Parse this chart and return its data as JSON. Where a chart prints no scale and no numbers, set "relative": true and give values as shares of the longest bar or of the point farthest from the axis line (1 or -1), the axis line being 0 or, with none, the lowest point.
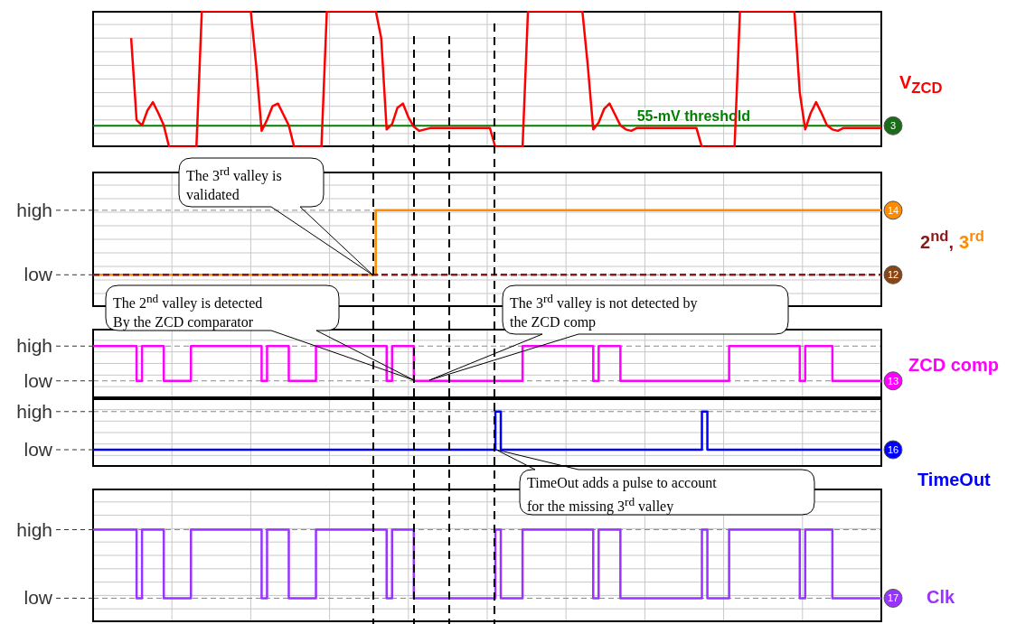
{
  "chart_data": [
    {
      "type": "line",
      "relative": true,
      "grid": true,
      "marker": "none",
      "categories": [
        null,
        null,
        null,
        null,
        null,
        null,
        null,
        null,
        null,
        null,
        null,
        null,
        null,
        null,
        null,
        null,
        null,
        null,
        null,
        null,
        null,
        null,
        null,
        null,
        null,
        null,
        null,
        null,
        null,
        null,
        null,
        null,
        null,
        null,
        null,
        null,
        null,
        null,
        null,
        null,
        null,
        null,
        null,
        null,
        null,
        null,
        null,
        null,
        null,
        null,
        null,
        null,
        null,
        null,
        null,
        null,
        null,
        null,
        null,
        null,
        null,
        null,
        null,
        null,
        null,
        null,
        null,
        null,
        null,
        null,
        null,
        null,
        null,
        null,
        null,
        null,
        null,
        null,
        null,
        null,
        null,
        null,
        null,
        null,
        null,
        null,
        null,
        null,
        null,
        null,
        null,
        null,
        null,
        null,
        null,
        null,
        null,
        null,
        null,
        null,
        null,
        null,
        null,
        null,
        null,
        null,
        null,
        null,
        null,
        null,
        null,
        null,
        null,
        null,
        null,
        null,
        null,
        null,
        null,
        null,
        null,
        null,
        null,
        null,
        null,
        null,
        null,
        null,
        null,
        null,
        null,
        null,
        null,
        null,
        null,
        null,
        null,
        null,
        null,
        null,
        null,
        null,
        null,
        null,
        null,
        null
      ],
      "series": [
        {
          "name": "V$_{ZCD}$",
          "color": "#ff0000",
          "values": [
            null,
            null,
            null,
            null,
            null,
            null,
            null,
            0.8,
            0.2,
            0.16,
            0.27,
            0.33,
            0.25,
            0.16,
            0,
            0,
            0,
            0,
            0,
            0,
            1,
            1,
            1,
            1,
            1,
            1,
            1,
            1,
            1,
            1,
            0.6,
            0.12,
            0.2,
            0.3,
            0.32,
            0.24,
            0.16,
            0,
            0,
            0,
            0,
            0,
            0,
            1,
            1,
            1,
            1,
            1,
            1,
            1,
            1,
            1,
            1,
            0.8,
            0.13,
            0.17,
            0.29,
            0.32,
            0.22,
            0.15,
            0.12,
            0.13,
            0.14,
            0.14,
            0.14,
            0.14,
            0.14,
            0.14,
            0.14,
            0.14,
            0.14,
            0.14,
            0.14,
            0.14,
            0,
            0,
            0,
            0,
            0,
            0,
            1,
            1,
            1,
            1,
            1,
            1,
            1,
            1,
            1,
            1,
            1,
            0.6,
            0.13,
            0.18,
            0.28,
            0.32,
            0.24,
            0.16,
            0.13,
            0.12,
            0.14,
            0.14,
            0.14,
            0.14,
            0.14,
            0.14,
            0.14,
            0.14,
            0.14,
            0.14,
            0.14,
            0.14,
            0,
            0,
            0,
            0,
            0,
            0,
            0,
            1,
            1,
            1,
            1,
            1,
            1,
            1,
            1,
            1,
            1,
            1,
            0.4,
            0.13,
            0.25,
            0.33,
            0.25,
            0.16,
            0.13,
            0.12,
            0.14,
            0.14,
            0.14,
            0.14,
            0.14,
            0.14,
            0.14,
            0.14
          ]
        }
      ],
      "ref_lines": [
        {
          "axis": "y",
          "value": 0.157,
          "label": "55-mV threshold",
          "color": "#008000"
        }
      ],
      "annotations": [
        "3"
      ]
    },
    {
      "type": "step",
      "grid": true,
      "marker": "none",
      "relative": true,
      "categories": [
        null,
        null,
        null,
        null,
        null,
        null,
        null,
        null,
        null,
        null,
        null,
        null,
        null,
        null,
        null,
        null,
        null,
        null,
        null,
        null,
        null,
        null,
        null,
        null,
        null,
        null,
        null,
        null,
        null,
        null,
        null,
        null,
        null,
        null,
        null,
        null,
        null,
        null,
        null,
        null,
        null,
        null,
        null,
        null,
        null,
        null,
        null,
        null,
        null,
        null,
        null,
        null,
        null,
        null,
        null,
        null,
        null,
        null,
        null,
        null,
        null,
        null,
        null,
        null,
        null,
        null,
        null,
        null,
        null,
        null,
        null,
        null,
        null,
        null,
        null,
        null,
        null,
        null,
        null,
        null,
        null,
        null,
        null,
        null,
        null,
        null,
        null,
        null,
        null,
        null,
        null,
        null,
        null,
        null,
        null,
        null,
        null,
        null,
        null,
        null,
        null,
        null,
        null,
        null,
        null,
        null,
        null,
        null,
        null,
        null,
        null,
        null,
        null,
        null,
        null,
        null,
        null,
        null,
        null,
        null,
        null,
        null,
        null,
        null,
        null,
        null,
        null,
        null,
        null,
        null,
        null,
        null,
        null,
        null,
        null,
        null,
        null,
        null,
        null,
        null,
        null,
        null,
        null,
        null,
        null,
        null
      ],
      "series": [
        {
          "name": "2$^{nd}$,",
          "color": "#8b1a1a",
          "line_style": "dashed",
          "values": [
            0,
            0,
            0,
            0,
            0,
            0,
            0,
            0,
            0,
            0,
            0,
            0,
            0,
            0,
            0,
            0,
            0,
            0,
            0,
            0,
            0,
            0,
            0,
            0,
            0,
            0,
            0,
            0,
            0,
            0,
            0,
            0,
            0,
            0,
            0,
            0,
            0,
            0,
            0,
            0,
            0,
            0,
            0,
            0,
            0,
            0,
            0,
            0,
            0,
            0,
            0,
            0,
            0,
            0,
            0,
            0,
            0,
            0,
            0,
            0,
            0,
            0,
            0,
            0,
            0,
            0,
            0,
            0,
            0,
            0,
            0,
            0,
            0,
            0,
            0,
            0,
            0,
            0,
            0,
            0,
            0,
            0,
            0,
            0,
            0,
            0,
            0,
            0,
            0,
            0,
            0,
            0,
            0,
            0,
            0,
            0,
            0,
            0,
            0,
            0,
            0,
            0,
            0,
            0,
            0,
            0,
            0,
            0,
            0,
            0,
            0,
            0,
            0,
            0,
            0,
            0,
            0,
            0,
            0,
            0,
            0,
            0,
            0,
            0,
            0,
            0,
            0,
            0,
            0,
            0,
            0,
            0,
            0,
            0,
            0,
            0,
            0,
            0,
            0,
            0,
            0,
            0,
            0,
            0,
            0,
            0
          ]
        },
        {
          "name": "3$^{rd}$",
          "color": "#ff8c00",
          "line_style": "solid",
          "values": [
            0,
            0,
            0,
            0,
            0,
            0,
            0,
            0,
            0,
            0,
            0,
            0,
            0,
            0,
            0,
            0,
            0,
            0,
            0,
            0,
            0,
            0,
            0,
            0,
            0,
            0,
            0,
            0,
            0,
            0,
            0,
            0,
            0,
            0,
            0,
            0,
            0,
            0,
            0,
            0,
            0,
            0,
            0,
            0,
            0,
            0,
            0,
            0,
            0,
            0,
            0,
            0,
            1,
            1,
            1,
            1,
            1,
            1,
            1,
            1,
            1,
            1,
            1,
            1,
            1,
            1,
            1,
            1,
            1,
            1,
            1,
            1,
            1,
            1,
            1,
            1,
            1,
            1,
            1,
            1,
            1,
            1,
            1,
            1,
            1,
            1,
            1,
            1,
            1,
            1,
            1,
            1,
            1,
            1,
            1,
            1,
            1,
            1,
            1,
            1,
            1,
            1,
            1,
            1,
            1,
            1,
            1,
            1,
            1,
            1,
            1,
            1,
            1,
            1,
            1,
            1,
            1,
            1,
            1,
            1,
            1,
            1,
            1,
            1,
            1,
            1,
            1,
            1,
            1,
            1,
            1,
            1,
            1,
            1,
            1,
            1,
            1,
            1,
            1,
            1,
            1,
            1,
            1,
            1,
            1,
            1
          ]
        }
      ],
      "annotations": [
        "The 3$^{rd}$ valley is\nvalidated",
        "14",
        "12",
        "high",
        "low"
      ]
    },
    {
      "type": "step",
      "grid": true,
      "marker": "none",
      "relative": true,
      "categories": [
        null,
        null,
        null,
        null,
        null,
        null,
        null,
        null,
        null,
        null,
        null,
        null,
        null,
        null,
        null,
        null,
        null,
        null,
        null,
        null,
        null,
        null,
        null,
        null,
        null,
        null,
        null,
        null,
        null,
        null,
        null,
        null,
        null,
        null,
        null,
        null,
        null,
        null,
        null,
        null,
        null,
        null,
        null,
        null,
        null,
        null,
        null,
        null,
        null,
        null,
        null,
        null,
        null,
        null,
        null,
        null,
        null,
        null,
        null,
        null,
        null,
        null,
        null,
        null,
        null,
        null,
        null,
        null,
        null,
        null,
        null,
        null,
        null,
        null,
        null,
        null,
        null,
        null,
        null,
        null,
        null,
        null,
        null,
        null,
        null,
        null,
        null,
        null,
        null,
        null,
        null,
        null,
        null,
        null,
        null,
        null,
        null,
        null,
        null,
        null,
        null,
        null,
        null,
        null,
        null,
        null,
        null,
        null,
        null,
        null,
        null,
        null,
        null,
        null,
        null,
        null,
        null,
        null,
        null,
        null,
        null,
        null,
        null,
        null,
        null,
        null,
        null,
        null,
        null,
        null,
        null,
        null,
        null,
        null,
        null,
        null,
        null,
        null,
        null,
        null,
        null,
        null,
        null,
        null,
        null,
        null
      ],
      "series": [
        {
          "name": "ZCD comp",
          "color": "#ff00ff",
          "values": [
            1,
            1,
            1,
            1,
            1,
            1,
            1,
            1,
            0,
            1,
            1,
            1,
            1,
            0,
            0,
            0,
            0,
            0,
            1,
            1,
            1,
            1,
            1,
            1,
            1,
            1,
            1,
            1,
            1,
            1,
            1,
            0,
            1,
            1,
            1,
            1,
            0,
            0,
            0,
            0,
            0,
            1,
            1,
            1,
            1,
            1,
            1,
            1,
            1,
            1,
            1,
            1,
            1,
            1,
            0,
            1,
            1,
            1,
            1,
            0,
            0,
            0,
            0,
            0,
            0,
            0,
            0,
            0,
            0,
            0,
            0,
            0,
            0,
            0,
            0,
            0,
            0,
            0,
            0,
            1,
            1,
            1,
            1,
            1,
            1,
            1,
            1,
            1,
            1,
            1,
            1,
            1,
            0,
            1,
            1,
            1,
            1,
            0,
            0,
            0,
            0,
            0,
            0,
            0,
            0,
            0,
            0,
            0,
            0,
            0,
            0,
            0,
            0,
            0,
            0,
            0,
            0,
            1,
            1,
            1,
            1,
            1,
            1,
            1,
            1,
            1,
            1,
            1,
            1,
            1,
            0,
            1,
            1,
            1,
            1,
            1,
            0,
            0,
            0,
            0,
            0,
            0,
            0,
            0,
            0,
            0
          ]
        }
      ],
      "annotations": [
        "The 2$^{nd}$ valley is detected\nBy the ZCD comparator",
        "The 3$^{rd}$ valley is not detected by\nthe ZCD comp",
        "13",
        "high",
        "low"
      ]
    },
    {
      "type": "step",
      "grid": true,
      "marker": "none",
      "relative": true,
      "categories": [
        null,
        null,
        null,
        null,
        null,
        null,
        null,
        null,
        null,
        null,
        null,
        null,
        null,
        null,
        null,
        null,
        null,
        null,
        null,
        null,
        null,
        null,
        null,
        null,
        null,
        null,
        null,
        null,
        null,
        null,
        null,
        null,
        null,
        null,
        null,
        null,
        null,
        null,
        null,
        null,
        null,
        null,
        null,
        null,
        null,
        null,
        null,
        null,
        null,
        null,
        null,
        null,
        null,
        null,
        null,
        null,
        null,
        null,
        null,
        null,
        null,
        null,
        null,
        null,
        null,
        null,
        null,
        null,
        null,
        null,
        null,
        null,
        null,
        null,
        null,
        null,
        null,
        null,
        null,
        null,
        null,
        null,
        null,
        null,
        null,
        null,
        null,
        null,
        null,
        null,
        null,
        null,
        null,
        null,
        null,
        null,
        null,
        null,
        null,
        null,
        null,
        null,
        null,
        null,
        null,
        null,
        null,
        null,
        null,
        null,
        null,
        null,
        null,
        null,
        null,
        null,
        null,
        null,
        null,
        null,
        null,
        null,
        null,
        null,
        null,
        null,
        null,
        null,
        null,
        null,
        null,
        null,
        null,
        null,
        null,
        null,
        null,
        null,
        null,
        null,
        null,
        null,
        null,
        null,
        null,
        null
      ],
      "series": [
        {
          "name": "TimeOut",
          "color": "#0000ff",
          "values": [
            0,
            0,
            0,
            0,
            0,
            0,
            0,
            0,
            0,
            0,
            0,
            0,
            0,
            0,
            0,
            0,
            0,
            0,
            0,
            0,
            0,
            0,
            0,
            0,
            0,
            0,
            0,
            0,
            0,
            0,
            0,
            0,
            0,
            0,
            0,
            0,
            0,
            0,
            0,
            0,
            0,
            0,
            0,
            0,
            0,
            0,
            0,
            0,
            0,
            0,
            0,
            0,
            0,
            0,
            0,
            0,
            0,
            0,
            0,
            0,
            0,
            0,
            0,
            0,
            0,
            0,
            0,
            0,
            0,
            0,
            0,
            0,
            0,
            0,
            1,
            0,
            0,
            0,
            0,
            0,
            0,
            0,
            0,
            0,
            0,
            0,
            0,
            0,
            0,
            0,
            0,
            0,
            0,
            0,
            0,
            0,
            0,
            0,
            0,
            0,
            0,
            0,
            0,
            0,
            0,
            0,
            0,
            0,
            0,
            0,
            0,
            0,
            1,
            0,
            0,
            0,
            0,
            0,
            0,
            0,
            0,
            0,
            0,
            0,
            0,
            0,
            0,
            0,
            0,
            0,
            0,
            0,
            0,
            0,
            0,
            0,
            0,
            0,
            0,
            0,
            0,
            0,
            0,
            0,
            0,
            0
          ]
        }
      ],
      "annotations": [
        "TimeOut adds a pulse to account\nfor the missing 3$^{rd}$ valley",
        "16",
        "high",
        "low"
      ]
    },
    {
      "type": "step",
      "grid": true,
      "marker": "none",
      "relative": true,
      "categories": [
        null,
        null,
        null,
        null,
        null,
        null,
        null,
        null,
        null,
        null,
        null,
        null,
        null,
        null,
        null,
        null,
        null,
        null,
        null,
        null,
        null,
        null,
        null,
        null,
        null,
        null,
        null,
        null,
        null,
        null,
        null,
        null,
        null,
        null,
        null,
        null,
        null,
        null,
        null,
        null,
        null,
        null,
        null,
        null,
        null,
        null,
        null,
        null,
        null,
        null,
        null,
        null,
        null,
        null,
        null,
        null,
        null,
        null,
        null,
        null,
        null,
        null,
        null,
        null,
        null,
        null,
        null,
        null,
        null,
        null,
        null,
        null,
        null,
        null,
        null,
        null,
        null,
        null,
        null,
        null,
        null,
        null,
        null,
        null,
        null,
        null,
        null,
        null,
        null,
        null,
        null,
        null,
        null,
        null,
        null,
        null,
        null,
        null,
        null,
        null,
        null,
        null,
        null,
        null,
        null,
        null,
        null,
        null,
        null,
        null,
        null,
        null,
        null,
        null,
        null,
        null,
        null,
        null,
        null,
        null,
        null,
        null,
        null,
        null,
        null,
        null,
        null,
        null,
        null,
        null,
        null,
        null,
        null,
        null,
        null,
        null,
        null,
        null,
        null,
        null,
        null,
        null,
        null,
        null,
        null,
        null
      ],
      "series": [
        {
          "name": "Clk",
          "color": "#9933ff",
          "values": [
            1,
            1,
            1,
            1,
            1,
            1,
            1,
            1,
            0,
            1,
            1,
            1,
            1,
            0,
            0,
            0,
            0,
            0,
            1,
            1,
            1,
            1,
            1,
            1,
            1,
            1,
            1,
            1,
            1,
            1,
            1,
            0,
            1,
            1,
            1,
            1,
            0,
            0,
            0,
            0,
            0,
            1,
            1,
            1,
            1,
            1,
            1,
            1,
            1,
            1,
            1,
            1,
            1,
            1,
            0,
            1,
            1,
            1,
            1,
            0,
            0,
            0,
            0,
            0,
            0,
            0,
            0,
            0,
            0,
            0,
            0,
            0,
            0,
            0,
            1,
            0,
            0,
            0,
            0,
            1,
            1,
            1,
            1,
            1,
            1,
            1,
            1,
            1,
            1,
            1,
            1,
            1,
            0,
            1,
            1,
            1,
            1,
            0,
            0,
            0,
            0,
            0,
            0,
            0,
            0,
            0,
            0,
            0,
            0,
            0,
            0,
            0,
            1,
            0,
            0,
            0,
            0,
            1,
            1,
            1,
            1,
            1,
            1,
            1,
            1,
            1,
            1,
            1,
            1,
            1,
            0,
            1,
            1,
            1,
            1,
            1,
            0,
            0,
            0,
            0,
            0,
            0,
            0,
            0,
            0,
            0
          ]
        }
      ],
      "annotations": [
        "17",
        "high",
        "low"
      ]
    }
  ]
}
